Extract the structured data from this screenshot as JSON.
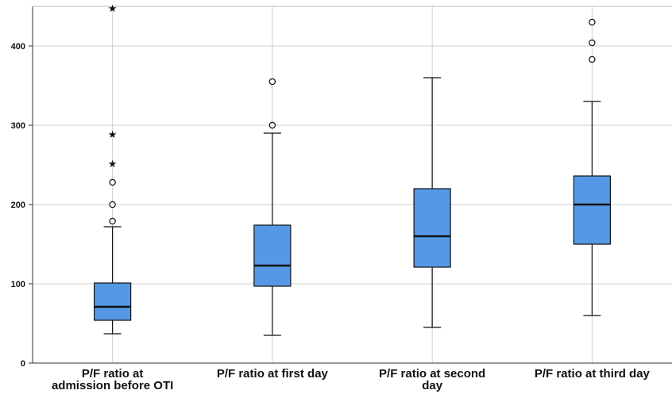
{
  "chart_data": {
    "type": "box",
    "title": "",
    "xlabel": "",
    "ylabel": "",
    "ylim": [
      0,
      450
    ],
    "yticks": [
      0,
      100,
      200,
      300,
      400
    ],
    "grid": true,
    "box_color": "#5599e6",
    "categories": [
      "P/F ratio at admission before OTI",
      "P/F ratio at first day",
      "P/F ratio at second day",
      "P/F ratio at third day"
    ],
    "category_label_lines": [
      [
        "P/F ratio at",
        "admission before OTI"
      ],
      [
        "P/F ratio at first day"
      ],
      [
        "P/F ratio at second",
        "day"
      ],
      [
        "P/F ratio at third day"
      ]
    ],
    "boxes": [
      {
        "whisker_low": 37,
        "q1": 54,
        "median": 71,
        "q3": 101,
        "whisker_high": 172,
        "outliers": [
          179,
          200,
          228
        ],
        "extremes": [
          252,
          289,
          448
        ]
      },
      {
        "whisker_low": 35,
        "q1": 97,
        "median": 123,
        "q3": 174,
        "whisker_high": 290,
        "outliers": [
          300,
          355
        ],
        "extremes": []
      },
      {
        "whisker_low": 45,
        "q1": 121,
        "median": 160,
        "q3": 220,
        "whisker_high": 360,
        "outliers": [],
        "extremes": []
      },
      {
        "whisker_low": 60,
        "q1": 150,
        "median": 200,
        "q3": 236,
        "whisker_high": 330,
        "outliers": [
          383,
          404,
          430
        ],
        "extremes": []
      }
    ]
  }
}
